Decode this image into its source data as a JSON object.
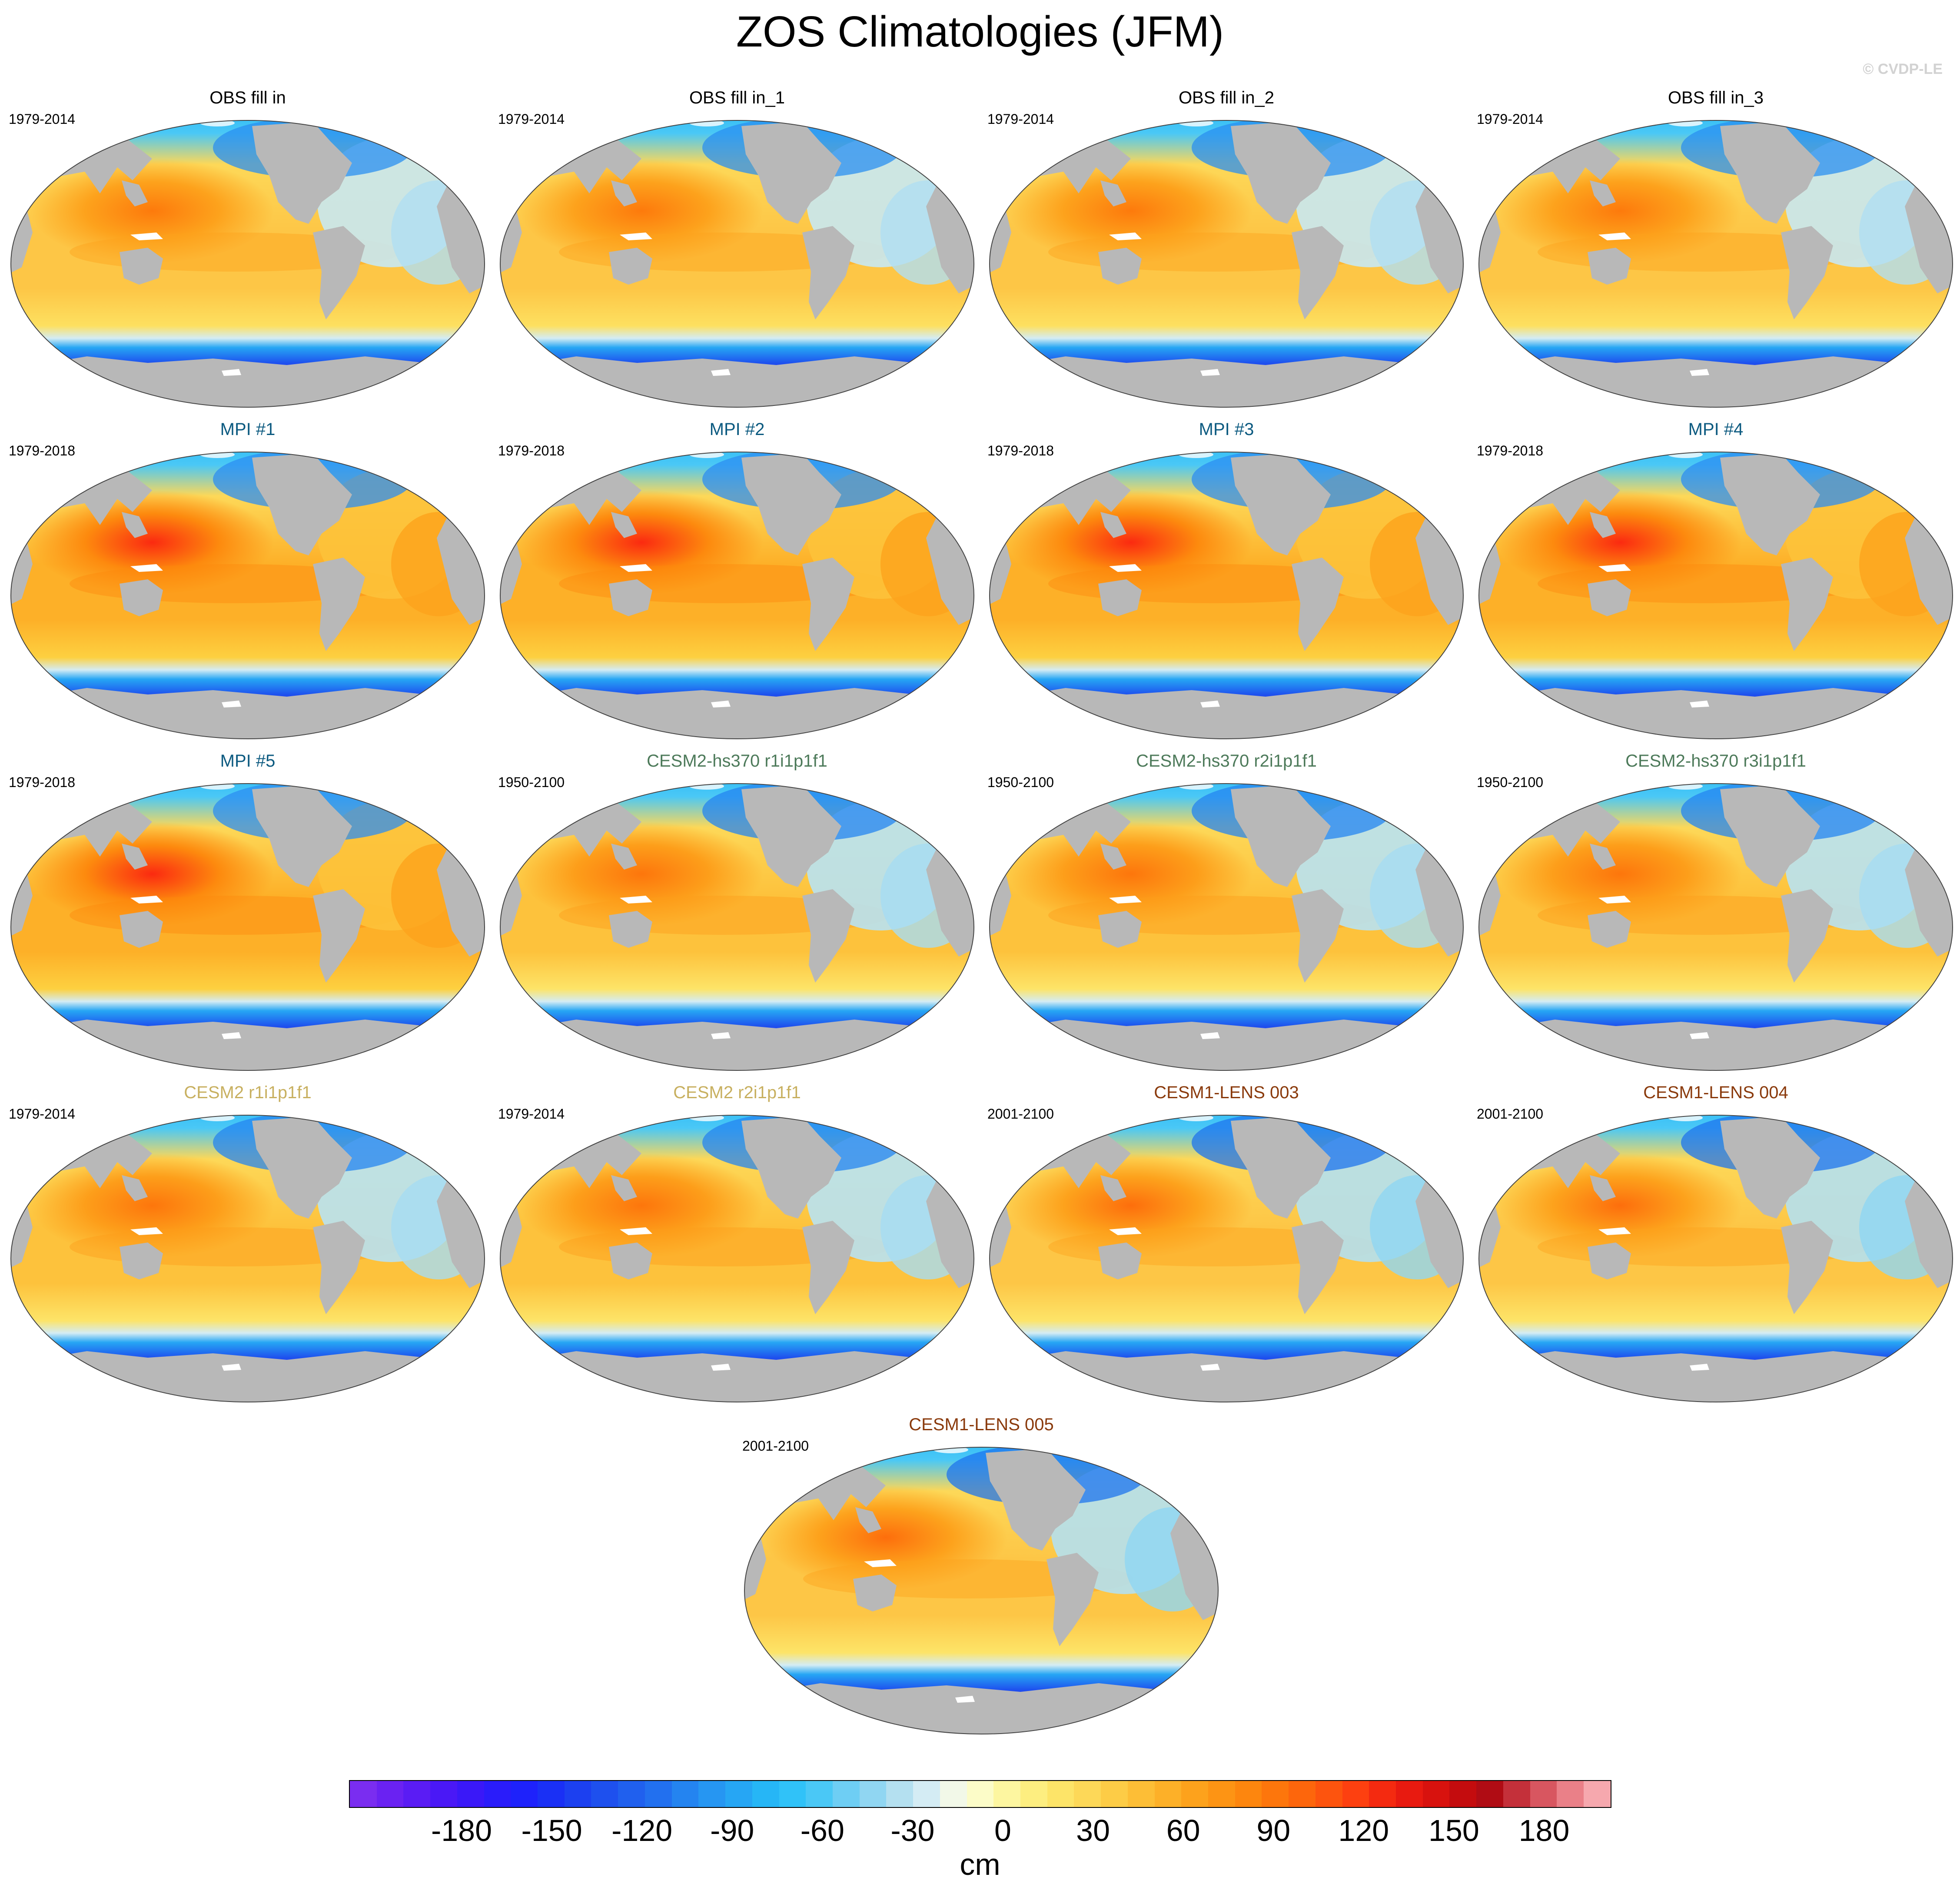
{
  "title": "ZOS Climatologies (JFM)",
  "watermark": "© CVDP-LE",
  "colors": {
    "land": "#b8b8b8",
    "ice": "#ffffff",
    "obs_title": "#000000",
    "mpi_title": "#0c5a80",
    "cesm2_hs370_title": "#4d7a5a",
    "cesm2_title": "#c8b060",
    "cesm1_lens_title": "#8a3a0c"
  },
  "panels": [
    {
      "title": "OBS fill in",
      "years": "1979-2014",
      "title_color": "#000000",
      "style": "obs"
    },
    {
      "title": "OBS fill in_1",
      "years": "1979-2014",
      "title_color": "#000000",
      "style": "obs"
    },
    {
      "title": "OBS fill in_2",
      "years": "1979-2014",
      "title_color": "#000000",
      "style": "obs"
    },
    {
      "title": "OBS fill in_3",
      "years": "1979-2014",
      "title_color": "#000000",
      "style": "obs"
    },
    {
      "title": "MPI #1",
      "years": "1979-2018",
      "title_color": "#0c5a80",
      "style": "mpi"
    },
    {
      "title": "MPI #2",
      "years": "1979-2018",
      "title_color": "#0c5a80",
      "style": "mpi"
    },
    {
      "title": "MPI #3",
      "years": "1979-2018",
      "title_color": "#0c5a80",
      "style": "mpi"
    },
    {
      "title": "MPI #4",
      "years": "1979-2018",
      "title_color": "#0c5a80",
      "style": "mpi"
    },
    {
      "title": "MPI #5",
      "years": "1979-2018",
      "title_color": "#0c5a80",
      "style": "mpi"
    },
    {
      "title": "CESM2-hs370 r1i1p1f1",
      "years": "1950-2100",
      "title_color": "#4d7a5a",
      "style": "cesm"
    },
    {
      "title": "CESM2-hs370 r2i1p1f1",
      "years": "1950-2100",
      "title_color": "#4d7a5a",
      "style": "cesm"
    },
    {
      "title": "CESM2-hs370 r3i1p1f1",
      "years": "1950-2100",
      "title_color": "#4d7a5a",
      "style": "cesm"
    },
    {
      "title": "CESM2 r1i1p1f1",
      "years": "1979-2014",
      "title_color": "#c8b060",
      "style": "cesm"
    },
    {
      "title": "CESM2 r2i1p1f1",
      "years": "1979-2014",
      "title_color": "#c8b060",
      "style": "cesm"
    },
    {
      "title": "CESM1-LENS 003",
      "years": "2001-2100",
      "title_color": "#8a3a0c",
      "style": "lens"
    },
    {
      "title": "CESM1-LENS 004",
      "years": "2001-2100",
      "title_color": "#8a3a0c",
      "style": "lens"
    },
    {
      "title": "CESM1-LENS 005",
      "years": "2001-2100",
      "title_color": "#8a3a0c",
      "style": "lens"
    }
  ],
  "colorbar": {
    "unit": "cm",
    "ticks": [
      "-180",
      "-150",
      "-120",
      "-90",
      "-60",
      "-30",
      "0",
      "30",
      "60",
      "90",
      "120",
      "150",
      "180"
    ],
    "min": -210,
    "max": 210,
    "step": 10,
    "colors": [
      "#7a2df0",
      "#6a22f2",
      "#5a1cf4",
      "#4a18f6",
      "#3a18f8",
      "#2a1cfa",
      "#1e22fb",
      "#1a30f5",
      "#1c40f0",
      "#1e50ee",
      "#2060ee",
      "#2270ef",
      "#2484f0",
      "#2696f2",
      "#26a6f4",
      "#26b6f6",
      "#30c2f8",
      "#4ac8f6",
      "#6ecef4",
      "#90d6f2",
      "#b4e0f0",
      "#d4ecf4",
      "#f2f8e8",
      "#fcfcc8",
      "#fdf6a0",
      "#fdee80",
      "#fde468",
      "#fdd858",
      "#fdcc46",
      "#fdbe36",
      "#fdb028",
      "#fda21c",
      "#fd9414",
      "#fd860e",
      "#fd760c",
      "#fd660c",
      "#fd540e",
      "#fd4010",
      "#f42a10",
      "#e81a10",
      "#d8120e",
      "#c40c0e",
      "#b00c14",
      "#c4303a",
      "#d85660",
      "#ea8088",
      "#f6a8ae"
    ]
  }
}
